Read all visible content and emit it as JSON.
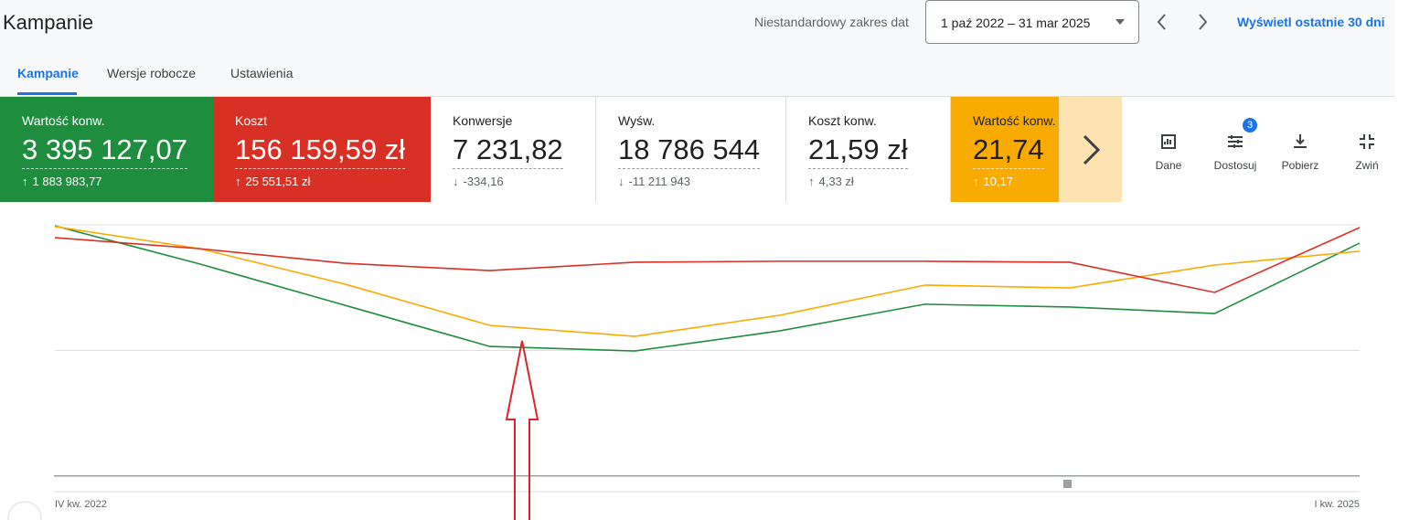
{
  "header": {
    "title": "Kampanie",
    "date_range_label": "Niestandardowy zakres dat",
    "date_range": "1 paź 2022 – 31 mar 2025",
    "last_30_link": "Wyświetl ostatnie 30 dni"
  },
  "tabs": [
    "Kampanie",
    "Wersje robocze",
    "Ustawienia"
  ],
  "metrics": [
    {
      "label": "Wartość konw.",
      "value": "3 395 127,07",
      "change": "1 883 983,77",
      "direction": "up",
      "color": "#1e8e3e"
    },
    {
      "label": "Koszt",
      "value": "156 159,59 zł",
      "change": "25 551,51 zł",
      "direction": "up",
      "color": "#d93025"
    },
    {
      "label": "Konwersje",
      "value": "7 231,82",
      "change": "-334,16",
      "direction": "down"
    },
    {
      "label": "Wyśw.",
      "value": "18 786 544",
      "change": "-11 211 943",
      "direction": "down"
    },
    {
      "label": "Koszt konw.",
      "value": "21,59 zł",
      "change": "4,33 zł",
      "direction": "up"
    },
    {
      "label": "Wartość konw. / koszt",
      "value": "21,74",
      "change": "10,17",
      "direction": "up",
      "color": "#f9ab00"
    }
  ],
  "tools": [
    {
      "label": "Dane"
    },
    {
      "label": "Dostosuj",
      "badge": "3"
    },
    {
      "label": "Pobierz"
    },
    {
      "label": "Zwiń"
    }
  ],
  "chart_data": {
    "type": "line",
    "categories": [
      "IV kw. 2022",
      null,
      null,
      null,
      null,
      null,
      null,
      null,
      null,
      "I kw. 2025"
    ],
    "series": [
      {
        "color": "#1e8e3e",
        "values": [
          99.6,
          84.4,
          68,
          51.6,
          49.8,
          57.8,
          68.4,
          67.3,
          64.7,
          92.7
        ]
      },
      {
        "color": "#f9ab00",
        "values": [
          99.3,
          90.5,
          76.4,
          60,
          55.6,
          64,
          76,
          74.9,
          84,
          89.5
        ]
      },
      {
        "color": "#d93025",
        "values": [
          94.9,
          90.5,
          84.7,
          81.8,
          85.1,
          85.5,
          85.5,
          85.1,
          73.1,
          98.9
        ]
      }
    ],
    "ylim": [
      0,
      100
    ],
    "grid_lines": [
      0,
      50,
      100
    ]
  }
}
